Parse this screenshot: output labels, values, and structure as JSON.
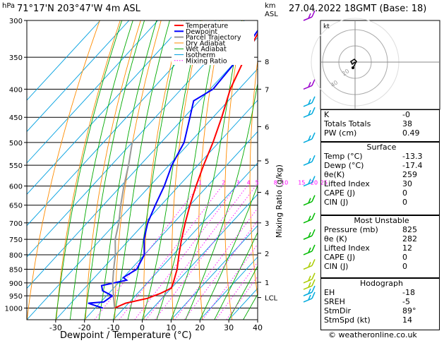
{
  "header": {
    "title": "71°17'N  203°47'W  4m  ASL",
    "date": "27.04.2022  18GMT  (Base: 18)",
    "hpa": "hPa",
    "km": "km",
    "asl": "ASL"
  },
  "chart_data": {
    "type": "line",
    "xlabel": "Dewpoint / Temperature (°C)",
    "ylabel": "hPa",
    "mixing_ratio_label": "Mixing Ratio (g/kg)",
    "x_ticks": [
      -30,
      -20,
      -10,
      0,
      10,
      20,
      30,
      40
    ],
    "xlim": [
      -40,
      40
    ],
    "pressure_levels": [
      300,
      350,
      400,
      450,
      500,
      550,
      600,
      650,
      700,
      750,
      800,
      850,
      900,
      950,
      1000
    ],
    "km_ticks": [
      {
        "label": "8",
        "p": 356
      },
      {
        "label": "7",
        "p": 400
      },
      {
        "label": "6",
        "p": 468
      },
      {
        "label": "5",
        "p": 540
      },
      {
        "label": "4",
        "p": 616
      },
      {
        "label": "3",
        "p": 700
      },
      {
        "label": "2",
        "p": 795
      },
      {
        "label": "1",
        "p": 898
      },
      {
        "label": "LCL",
        "p": 957
      }
    ],
    "mixing_ratio_values": [
      "1",
      "2",
      "3",
      "4",
      "5",
      "8",
      "10",
      "15",
      "20",
      "25"
    ],
    "legend": [
      "Temperature",
      "Dewpoint",
      "Parcel Trajectory",
      "Dry Adiabat",
      "Wet Adiabat",
      "Isotherm",
      "Mixing Ratio"
    ],
    "colors": {
      "temperature": "#ff0000",
      "dewpoint": "#0000ff",
      "parcel": "#999999",
      "dry_adiabat": "#ff8c00",
      "wet_adiabat": "#00aa00",
      "isotherm": "#00a0e0",
      "mixing_ratio": "#ff00ff"
    },
    "series": [
      {
        "name": "Temperature",
        "points": [
          {
            "p": 1000,
            "t": -13.3
          },
          {
            "p": 980,
            "t": -11
          },
          {
            "p": 960,
            "t": -5
          },
          {
            "p": 940,
            "t": -2
          },
          {
            "p": 920,
            "t": 0
          },
          {
            "p": 900,
            "t": -1
          },
          {
            "p": 850,
            "t": -4
          },
          {
            "p": 800,
            "t": -8
          },
          {
            "p": 750,
            "t": -12
          },
          {
            "p": 700,
            "t": -16
          },
          {
            "p": 650,
            "t": -20
          },
          {
            "p": 600,
            "t": -24
          },
          {
            "p": 550,
            "t": -28
          },
          {
            "p": 500,
            "t": -32
          },
          {
            "p": 450,
            "t": -37
          },
          {
            "p": 400,
            "t": -43
          },
          {
            "p": 350,
            "t": -48
          },
          {
            "p": 300,
            "t": -53
          }
        ]
      },
      {
        "name": "Dewpoint",
        "points": [
          {
            "p": 1000,
            "t": -17.4
          },
          {
            "p": 980,
            "t": -24
          },
          {
            "p": 975,
            "t": -19
          },
          {
            "p": 950,
            "t": -18
          },
          {
            "p": 930,
            "t": -23
          },
          {
            "p": 910,
            "t": -25
          },
          {
            "p": 890,
            "t": -18
          },
          {
            "p": 880,
            "t": -20
          },
          {
            "p": 850,
            "t": -18
          },
          {
            "p": 800,
            "t": -20
          },
          {
            "p": 750,
            "t": -25
          },
          {
            "p": 700,
            "t": -29
          },
          {
            "p": 650,
            "t": -32
          },
          {
            "p": 600,
            "t": -35
          },
          {
            "p": 550,
            "t": -39
          },
          {
            "p": 500,
            "t": -42
          },
          {
            "p": 450,
            "t": -48
          },
          {
            "p": 420,
            "t": -52
          },
          {
            "p": 400,
            "t": -49
          },
          {
            "p": 350,
            "t": -50
          },
          {
            "p": 300,
            "t": -53
          }
        ]
      },
      {
        "name": "Parcel Trajectory",
        "points": [
          {
            "p": 1000,
            "t": -13.3
          },
          {
            "p": 957,
            "t": -17
          },
          {
            "p": 900,
            "t": -22
          },
          {
            "p": 850,
            "t": -26
          },
          {
            "p": 800,
            "t": -30
          },
          {
            "p": 750,
            "t": -35
          },
          {
            "p": 700,
            "t": -39
          },
          {
            "p": 650,
            "t": -44
          },
          {
            "p": 600,
            "t": -49
          },
          {
            "p": 550,
            "t": -54
          },
          {
            "p": 500,
            "t": -60
          }
        ]
      }
    ]
  },
  "indices": [
    {
      "label": "K",
      "value": "-0"
    },
    {
      "label": "Totals Totals",
      "value": "38"
    },
    {
      "label": "PW (cm)",
      "value": "0.49"
    }
  ],
  "surface": {
    "title": "Surface",
    "rows": [
      {
        "label": "Temp (°C)",
        "value": "-13.3"
      },
      {
        "label": "Dewp (°C)",
        "value": "-17.4"
      },
      {
        "label": "θe(K)",
        "value": "259"
      },
      {
        "label": "Lifted Index",
        "value": "30"
      },
      {
        "label": "CAPE (J)",
        "value": "0"
      },
      {
        "label": "CIN (J)",
        "value": "0"
      }
    ]
  },
  "most_unstable": {
    "title": "Most Unstable",
    "rows": [
      {
        "label": "Pressure (mb)",
        "value": "825"
      },
      {
        "label": "θe (K)",
        "value": "282"
      },
      {
        "label": "Lifted Index",
        "value": "12"
      },
      {
        "label": "CAPE (J)",
        "value": "0"
      },
      {
        "label": "CIN (J)",
        "value": "0"
      }
    ]
  },
  "hodograph": {
    "title": "Hodograph",
    "unit": "kt",
    "rings": [
      "20",
      "40"
    ],
    "rows": [
      {
        "label": "EH",
        "value": "-18"
      },
      {
        "label": "SREH",
        "value": "-5"
      },
      {
        "label": "StmDir",
        "value": "89°"
      },
      {
        "label": "StmSpd (kt)",
        "value": "14"
      }
    ]
  },
  "copyright": "© weatheronline.co.uk"
}
